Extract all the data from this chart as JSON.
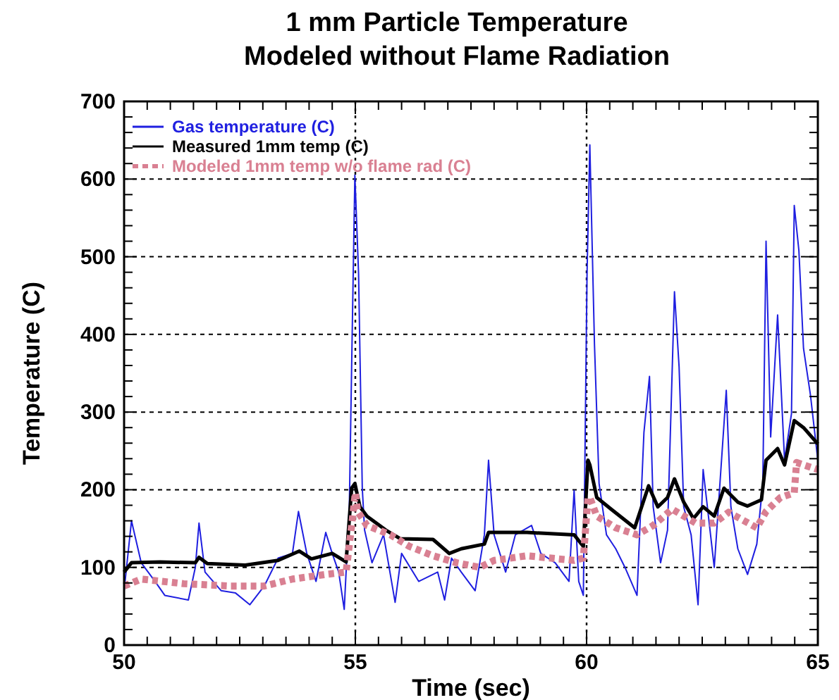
{
  "chart_data": {
    "type": "line",
    "title": "1 mm Particle Temperature\nModeled without Flame Radiation",
    "xlabel": "Time (sec)",
    "ylabel": "Temperature (C)",
    "xlim": [
      50,
      65
    ],
    "xticks": [
      50,
      {
        "value": 50.5,
        "label": null
      },
      {
        "value": 51,
        "label": null
      },
      {
        "value": 51.5,
        "label": null
      },
      {
        "value": 52,
        "label": null
      },
      {
        "value": 52.5,
        "label": null
      },
      {
        "value": 53,
        "label": null
      },
      {
        "value": 53.5,
        "label": null
      },
      {
        "value": 54,
        "label": null
      },
      {
        "value": 54.5,
        "label": null
      },
      55,
      {
        "value": 55.5,
        "label": null
      },
      {
        "value": 56,
        "label": null
      },
      {
        "value": 56.5,
        "label": null
      },
      {
        "value": 57,
        "label": null
      },
      {
        "value": 57.5,
        "label": null
      },
      {
        "value": 58,
        "label": null
      },
      {
        "value": 58.5,
        "label": null
      },
      {
        "value": 59,
        "label": null
      },
      {
        "value": 59.5,
        "label": null
      },
      60,
      {
        "value": 60.5,
        "label": null
      },
      {
        "value": 61,
        "label": null
      },
      {
        "value": 61.5,
        "label": null
      },
      {
        "value": 62,
        "label": null
      },
      {
        "value": 62.5,
        "label": null
      },
      {
        "value": 63,
        "label": null
      },
      {
        "value": 63.5,
        "label": null
      },
      {
        "value": 64,
        "label": null
      },
      {
        "value": 64.5,
        "label": null
      },
      65
    ],
    "ylim": [
      0,
      700
    ],
    "yticks": [
      0,
      {
        "value": 20,
        "label": null
      },
      {
        "value": 40,
        "label": null
      },
      {
        "value": 60,
        "label": null
      },
      {
        "value": 80,
        "label": null
      },
      100,
      {
        "value": 120,
        "label": null
      },
      {
        "value": 140,
        "label": null
      },
      {
        "value": 160,
        "label": null
      },
      {
        "value": 180,
        "label": null
      },
      200,
      {
        "value": 220,
        "label": null
      },
      {
        "value": 240,
        "label": null
      },
      {
        "value": 260,
        "label": null
      },
      {
        "value": 280,
        "label": null
      },
      300,
      {
        "value": 320,
        "label": null
      },
      {
        "value": 340,
        "label": null
      },
      {
        "value": 360,
        "label": null
      },
      {
        "value": 380,
        "label": null
      },
      400,
      {
        "value": 420,
        "label": null
      },
      {
        "value": 440,
        "label": null
      },
      {
        "value": 460,
        "label": null
      },
      {
        "value": 480,
        "label": null
      },
      500,
      {
        "value": 520,
        "label": null
      },
      {
        "value": 540,
        "label": null
      },
      {
        "value": 560,
        "label": null
      },
      {
        "value": 580,
        "label": null
      },
      600,
      {
        "value": 620,
        "label": null
      },
      {
        "value": 640,
        "label": null
      },
      {
        "value": 660,
        "label": null
      },
      {
        "value": 680,
        "label": null
      },
      700
    ],
    "grid": "y",
    "legend": "top left",
    "marker": "none",
    "ref_lines": [
      {
        "axis": "x",
        "value": 55,
        "color": "#000000",
        "line_style": "dotted"
      },
      {
        "axis": "x",
        "value": 60,
        "color": "#000000",
        "line_style": "dotted"
      }
    ],
    "series": [
      {
        "name": "Gas temperature (C)",
        "color": "#1f1fe0",
        "line_style": "solid",
        "x": [
          50,
          50.16,
          50.37,
          50.67,
          50.88,
          51.39,
          51.54,
          51.62,
          51.75,
          52.1,
          52.41,
          52.72,
          53.03,
          53.33,
          53.64,
          53.77,
          53.95,
          54.15,
          54.36,
          54.5,
          54.64,
          54.76,
          54.87,
          54.92,
          54.99,
          55.07,
          55.15,
          55.2,
          55.36,
          55.61,
          55.86,
          56,
          56.37,
          56.78,
          56.93,
          57.08,
          57.29,
          57.59,
          57.79,
          57.88,
          58,
          58.25,
          58.46,
          58.81,
          59.01,
          59.32,
          59.62,
          59.73,
          59.83,
          59.93,
          60.01,
          60.07,
          60.17,
          60.27,
          60.43,
          60.63,
          60.83,
          61.09,
          61.24,
          61.36,
          61.44,
          61.6,
          61.75,
          61.9,
          62,
          62.1,
          62.26,
          62.41,
          62.52,
          62.76,
          63.02,
          63.12,
          63.27,
          63.48,
          63.68,
          63.81,
          63.88,
          63.98,
          64.13,
          64.28,
          64.43,
          64.49,
          64.59,
          64.69,
          64.84,
          65
        ],
        "values": [
          70,
          160,
          106,
          82,
          64,
          58,
          100,
          157,
          94,
          70,
          67,
          52,
          76,
          112,
          118,
          172,
          118,
          82,
          145,
          118,
          94,
          46,
          178,
          358,
          605,
          478,
          202,
          148,
          106,
          142,
          55,
          118,
          82,
          94,
          58,
          112,
          94,
          70,
          142,
          238,
          142,
          94,
          142,
          154,
          118,
          106,
          82,
          199,
          82,
          64,
          479,
          644,
          388,
          208,
          142,
          124,
          100,
          64,
          274,
          346,
          178,
          106,
          148,
          455,
          358,
          178,
          142,
          52,
          226,
          100,
          328,
          178,
          124,
          91,
          130,
          208,
          520,
          268,
          425,
          238,
          298,
          566,
          508,
          382,
          322,
          238
        ]
      },
      {
        "name": "Measured 1mm temp (C)",
        "color": "#000000",
        "line_style": "solid",
        "x": [
          50,
          50.16,
          50.78,
          51.54,
          51.62,
          51.8,
          52.62,
          53.33,
          53.79,
          54.05,
          54.5,
          54.8,
          54.92,
          54.99,
          55.1,
          55.25,
          55.66,
          55.97,
          56.68,
          57.03,
          57.29,
          57.79,
          57.88,
          58.71,
          59.73,
          59.93,
          60.03,
          60.07,
          60.22,
          60.53,
          61.04,
          61.19,
          61.34,
          61.54,
          61.75,
          61.9,
          62.1,
          62.31,
          62.52,
          62.76,
          62.97,
          63.27,
          63.48,
          63.78,
          63.88,
          64.13,
          64.28,
          64.49,
          64.69,
          65
        ],
        "values": [
          94,
          106,
          107,
          106,
          113,
          105,
          103,
          109,
          121,
          111,
          118,
          107,
          202,
          208,
          178,
          166,
          148,
          137,
          136,
          118,
          124,
          130,
          145,
          145,
          142,
          127,
          238,
          232,
          190,
          175,
          151,
          178,
          205,
          178,
          190,
          214,
          184,
          163,
          178,
          166,
          202,
          184,
          179,
          187,
          238,
          253,
          232,
          289,
          280,
          259
        ]
      },
      {
        "name": "Modeled 1mm temp w/o flame rad (C)",
        "color": "#d98092",
        "line_style": "dotted",
        "x": [
          50,
          50.37,
          51.29,
          52.31,
          53.03,
          53.64,
          54.36,
          54.8,
          54.92,
          55,
          55.05,
          55.25,
          55.76,
          56.17,
          56.68,
          57.19,
          57.69,
          58,
          58.71,
          59.73,
          59.93,
          60.03,
          60.07,
          60.22,
          60.63,
          61.09,
          61.44,
          61.85,
          62.36,
          62.76,
          63.07,
          63.68,
          63.88,
          64.19,
          64.49,
          64.54,
          65
        ],
        "values": [
          76,
          85,
          79,
          76,
          76,
          85,
          91,
          94,
          154,
          196,
          172,
          154,
          142,
          127,
          115,
          106,
          100,
          109,
          115,
          109,
          112,
          190,
          190,
          166,
          151,
          142,
          154,
          175,
          157,
          157,
          171,
          151,
          172,
          190,
          196,
          235,
          226
        ]
      }
    ]
  }
}
